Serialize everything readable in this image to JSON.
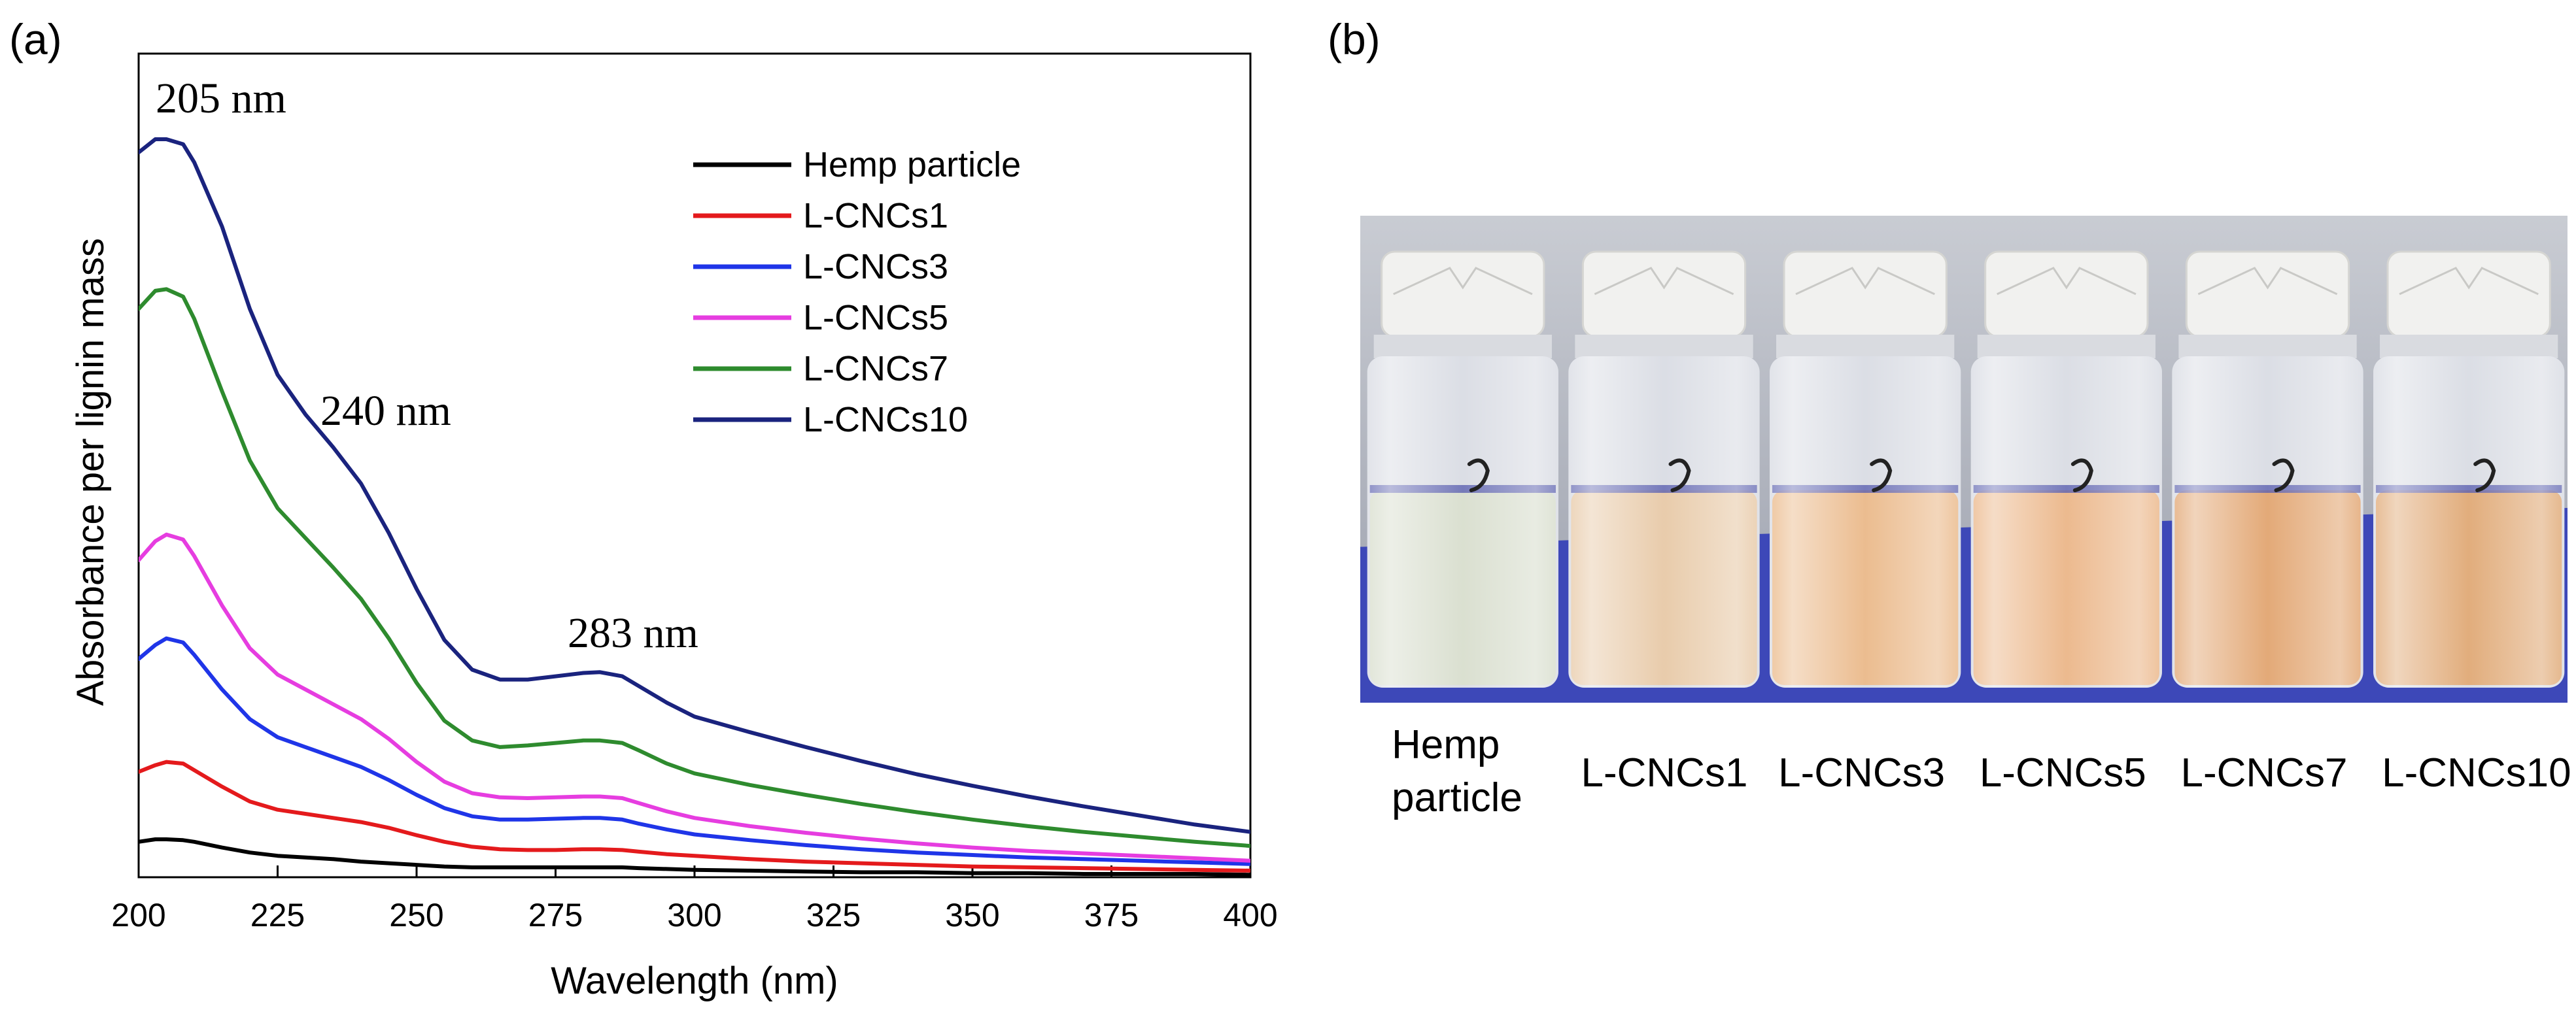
{
  "panel_a_label": "(a)",
  "panel_b_label": "(b)",
  "chart_data": {
    "type": "line",
    "title": "",
    "xlabel": "Wavelength (nm)",
    "ylabel": "Absorbance per lignin mass",
    "xlim": [
      200,
      400
    ],
    "ylim": [
      0,
      1.0
    ],
    "x_ticks": [
      200,
      225,
      250,
      275,
      300,
      325,
      350,
      375,
      400
    ],
    "y_ticks_visible": false,
    "grid": false,
    "legend_position": "top-right",
    "annotations": [
      {
        "text": "205 nm",
        "x": 205,
        "y": 0.98
      },
      {
        "text": "240 nm",
        "x": 240,
        "y": 0.64
      },
      {
        "text": "283 nm",
        "x": 283,
        "y": 0.3
      }
    ],
    "x": [
      200,
      203,
      205,
      208,
      210,
      215,
      220,
      225,
      230,
      235,
      240,
      245,
      250,
      255,
      260,
      265,
      270,
      275,
      280,
      283,
      287,
      290,
      295,
      300,
      310,
      320,
      330,
      340,
      350,
      360,
      370,
      380,
      390,
      400
    ],
    "series": [
      {
        "name": "Hemp particle",
        "color": "#000000",
        "values": [
          0.043,
          0.046,
          0.046,
          0.045,
          0.043,
          0.036,
          0.03,
          0.026,
          0.024,
          0.022,
          0.019,
          0.017,
          0.015,
          0.013,
          0.012,
          0.012,
          0.012,
          0.012,
          0.012,
          0.012,
          0.012,
          0.011,
          0.01,
          0.009,
          0.008,
          0.007,
          0.006,
          0.006,
          0.005,
          0.005,
          0.004,
          0.004,
          0.004,
          0.003
        ]
      },
      {
        "name": "L-CNCs1",
        "color": "#e41a1c",
        "values": [
          0.128,
          0.136,
          0.14,
          0.138,
          0.13,
          0.11,
          0.092,
          0.082,
          0.077,
          0.072,
          0.067,
          0.06,
          0.051,
          0.043,
          0.037,
          0.034,
          0.033,
          0.033,
          0.034,
          0.034,
          0.033,
          0.031,
          0.028,
          0.026,
          0.022,
          0.019,
          0.017,
          0.015,
          0.013,
          0.012,
          0.011,
          0.01,
          0.009,
          0.008
        ]
      },
      {
        "name": "L-CNCs3",
        "color": "#1f35e8",
        "values": [
          0.265,
          0.282,
          0.29,
          0.285,
          0.27,
          0.228,
          0.192,
          0.17,
          0.158,
          0.146,
          0.134,
          0.118,
          0.1,
          0.084,
          0.074,
          0.07,
          0.07,
          0.071,
          0.072,
          0.072,
          0.07,
          0.065,
          0.058,
          0.052,
          0.045,
          0.039,
          0.034,
          0.03,
          0.027,
          0.024,
          0.022,
          0.02,
          0.018,
          0.016
        ]
      },
      {
        "name": "L-CNCs5",
        "color": "#e63de0",
        "values": [
          0.385,
          0.408,
          0.416,
          0.41,
          0.39,
          0.33,
          0.278,
          0.246,
          0.228,
          0.21,
          0.192,
          0.168,
          0.14,
          0.116,
          0.102,
          0.097,
          0.096,
          0.097,
          0.098,
          0.098,
          0.096,
          0.09,
          0.08,
          0.072,
          0.062,
          0.054,
          0.047,
          0.041,
          0.036,
          0.032,
          0.029,
          0.026,
          0.023,
          0.02
        ]
      },
      {
        "name": "L-CNCs7",
        "color": "#2e8b2e",
        "values": [
          0.69,
          0.712,
          0.714,
          0.705,
          0.678,
          0.59,
          0.506,
          0.448,
          0.412,
          0.376,
          0.338,
          0.29,
          0.236,
          0.19,
          0.166,
          0.158,
          0.16,
          0.163,
          0.166,
          0.166,
          0.163,
          0.154,
          0.138,
          0.126,
          0.112,
          0.1,
          0.089,
          0.079,
          0.07,
          0.062,
          0.055,
          0.049,
          0.043,
          0.038
        ]
      },
      {
        "name": "L-CNCs10",
        "color": "#1a237e",
        "values": [
          0.88,
          0.896,
          0.896,
          0.89,
          0.868,
          0.79,
          0.69,
          0.61,
          0.562,
          0.522,
          0.478,
          0.418,
          0.35,
          0.288,
          0.252,
          0.24,
          0.24,
          0.244,
          0.248,
          0.249,
          0.244,
          0.232,
          0.212,
          0.195,
          0.176,
          0.158,
          0.141,
          0.125,
          0.111,
          0.098,
          0.086,
          0.075,
          0.064,
          0.055
        ]
      }
    ]
  },
  "photo": {
    "labels": [
      {
        "line1": "Hemp",
        "line2": "particle"
      },
      {
        "line1": "L-CNCs1",
        "line2": ""
      },
      {
        "line1": "L-CNCs3",
        "line2": ""
      },
      {
        "line1": "L-CNCs5",
        "line2": ""
      },
      {
        "line1": "L-CNCs7",
        "line2": ""
      },
      {
        "line1": "L-CNCs10",
        "line2": ""
      }
    ],
    "background_color": "#3d48b8",
    "wall_color": "#b9bec8",
    "cap_color": "#f1f1ef",
    "liquid_colors": [
      "#d6dccb",
      "#e6c6a2",
      "#e9b583",
      "#eab282",
      "#e0a069",
      "#dea46e"
    ]
  }
}
